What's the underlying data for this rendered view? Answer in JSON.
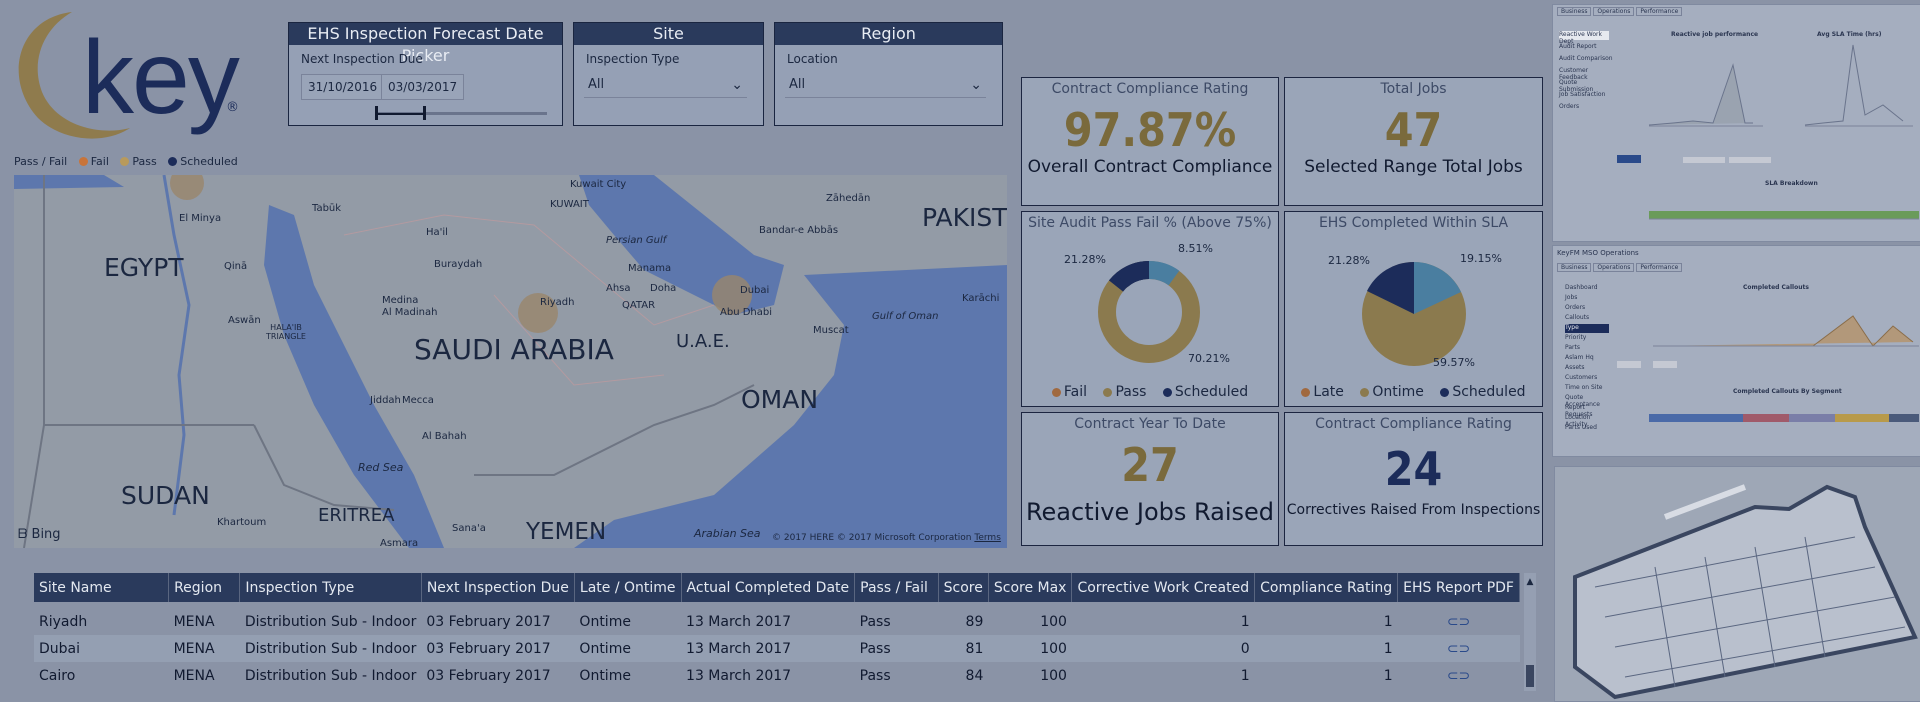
{
  "logo": {
    "text": "key",
    "registered": "®"
  },
  "date_slicer": {
    "title": "EHS Inspection Forecast Date Picker",
    "label": "Next Inspection Due",
    "start": "31/10/2016",
    "end": "03/03/2017"
  },
  "site_slicer": {
    "title": "Site",
    "label": "Inspection Type",
    "value": "All"
  },
  "region_slicer": {
    "title": "Region",
    "label": "Location",
    "value": "All"
  },
  "map": {
    "legend_title": "Pass / Fail",
    "legend": [
      {
        "label": "Fail",
        "color": "#c8743a"
      },
      {
        "label": "Pass",
        "color": "#b89a5c"
      },
      {
        "label": "Scheduled",
        "color": "#1c2c5a"
      }
    ],
    "countries": [
      "EGYPT",
      "SAUDI ARABIA",
      "U.A.E.",
      "OMAN",
      "SUDAN",
      "ERITREA",
      "YEMEN",
      "PAKIST"
    ],
    "places": [
      "Tabūk",
      "El Minya",
      "Qinā",
      "Aswān",
      "Ha'il",
      "Buraydah",
      "Medina",
      "Al Madinah",
      "Riyadh",
      "Jiddah",
      "Mecca",
      "Al Bahah",
      "Khartoum",
      "Asmara",
      "Sana'a",
      "Kuwait City",
      "KUWAIT",
      "Persian Gulf",
      "Manama",
      "Ahsa",
      "Doha",
      "QATAR",
      "Dubai",
      "Abu Dhabi",
      "Bandar-e Abbās",
      "Zāhedān",
      "Muscat",
      "Gulf of Oman",
      "Karāchi",
      "Red Sea",
      "Arabian Sea",
      "HALA'IB TRIANGLE"
    ],
    "bing": "Bing",
    "copyright": "© 2017 HERE © 2017 Microsoft Corporation",
    "terms": "Terms"
  },
  "cards": {
    "compliance": {
      "title": "Contract Compliance Rating",
      "value": "97.87%",
      "sub": "Overall Contract Compliance"
    },
    "total_jobs": {
      "title": "Total Jobs",
      "value": "47",
      "sub": "Selected Range Total Jobs"
    },
    "audit": {
      "title": "Site Audit Pass Fail % (Above 75%)",
      "labels": [
        "21.28%",
        "8.51%",
        "70.21%"
      ],
      "legend": [
        "Fail",
        "Pass",
        "Scheduled"
      ]
    },
    "sla": {
      "title": "EHS Completed Within SLA",
      "labels": [
        "21.28%",
        "19.15%",
        "59.57%"
      ],
      "legend": [
        "Late",
        "Ontime",
        "Scheduled"
      ]
    },
    "ytd": {
      "title": "Contract Year To Date",
      "value": "27",
      "sub": "Reactive Jobs Raised"
    },
    "correctives": {
      "title": "Contract Compliance Rating",
      "value": "24",
      "sub": "Correctives Raised From Inspections"
    }
  },
  "table": {
    "headers": [
      "Site Name",
      "Region",
      "Inspection Type",
      "Next Inspection Due",
      "Late / Ontime",
      "Actual Completed Date",
      "Pass / Fail",
      "Score",
      "Score Max",
      "Corrective Work Created",
      "Compliance Rating",
      "EHS Report PDF"
    ],
    "rows": [
      [
        "Riyadh",
        "MENA",
        "Distribution Sub - Indoor",
        "03 February 2017",
        "Ontime",
        "13 March 2017",
        "Pass",
        "89",
        "100",
        "1",
        "1"
      ],
      [
        "Dubai",
        "MENA",
        "Distribution Sub - Indoor",
        "03 February 2017",
        "Ontime",
        "13 March 2017",
        "Pass",
        "81",
        "100",
        "0",
        "1"
      ],
      [
        "Cairo",
        "MENA",
        "Distribution Sub - Indoor",
        "03 February 2017",
        "Ontime",
        "13 March 2017",
        "Pass",
        "84",
        "100",
        "1",
        "1"
      ]
    ]
  },
  "right_panel": {
    "tabs": [
      "Business",
      "Operations",
      "Performance"
    ],
    "nav": [
      "Reactive Work Dept",
      "Audit Report",
      "Audit Comparison",
      "Customer Feedback",
      "Quote Submission",
      "Job Satisfaction",
      "Orders"
    ],
    "chart1": "Reactive job performance",
    "chart2": "Avg SLA Time (hrs)",
    "sla_title": "SLA Breakdown",
    "ops_title": "KeyFM MSO Operations",
    "ops_tabs": [
      "Business",
      "Operations",
      "Performance"
    ],
    "ops_nav": [
      "Dashboard",
      "Jobs",
      "Orders",
      "Callouts",
      "Type",
      "Priority",
      "Parts",
      "Aslam Hq",
      "Assets",
      "Customers",
      "Time on Site",
      "Quote Acceptance",
      "Report Requests",
      "Location Activity",
      "Parts Used"
    ],
    "callouts_title": "Completed Callouts",
    "segment_title": "Completed Callouts By Segment"
  }
}
